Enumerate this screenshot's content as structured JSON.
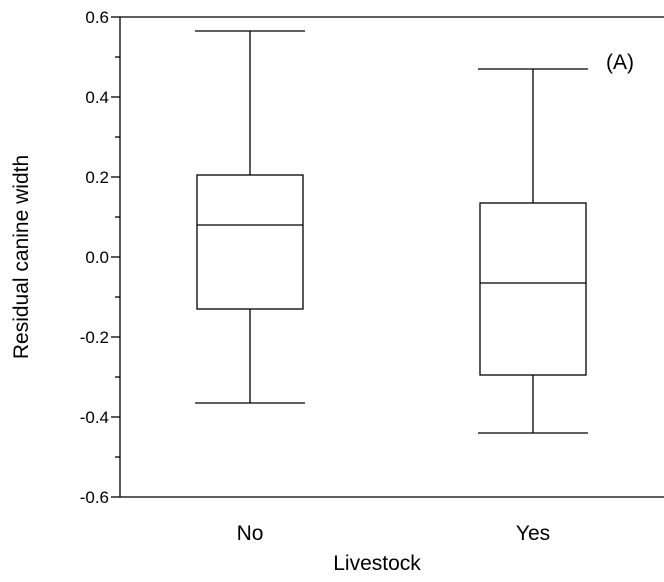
{
  "chart_data": {
    "type": "boxplot",
    "panel_label": "(A)",
    "xlabel": "Livestock",
    "ylabel": "Residual canine width",
    "ylim": [
      -0.6,
      0.6
    ],
    "yticks": [
      -0.6,
      -0.4,
      -0.2,
      0.0,
      0.2,
      0.4,
      0.6
    ],
    "ytick_labels": [
      "-0.6",
      "-0.4",
      "-0.2",
      "0.0",
      "0.2",
      "0.4",
      "0.6"
    ],
    "yminor": [
      -0.5,
      -0.3,
      -0.1,
      0.1,
      0.3,
      0.5
    ],
    "categories": [
      "No",
      "Yes"
    ],
    "boxes": [
      {
        "category": "No",
        "whisker_low": -0.365,
        "q1": -0.13,
        "median": 0.08,
        "q3": 0.205,
        "whisker_high": 0.565
      },
      {
        "category": "Yes",
        "whisker_low": -0.44,
        "q1": -0.295,
        "median": -0.065,
        "q3": 0.135,
        "whisker_high": 0.47
      }
    ],
    "grid": false
  }
}
